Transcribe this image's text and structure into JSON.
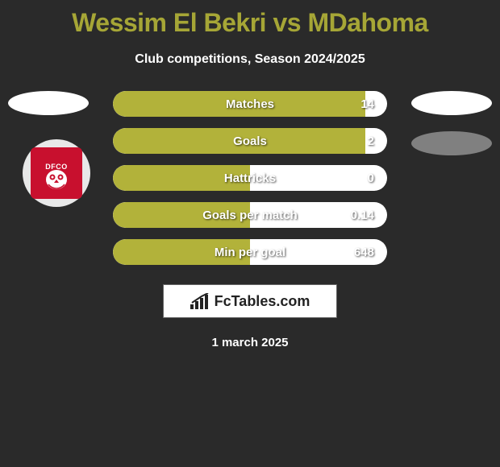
{
  "title": "Wessim El Bekri vs MDahoma",
  "title_color": "#a6a636",
  "subtitle": "Club competitions, Season 2024/2025",
  "date": "1 march 2025",
  "badge": {
    "text": "DFCO",
    "bg": "#c8102e"
  },
  "stats": [
    {
      "label": "Matches",
      "value": "14",
      "fill_pct": 92,
      "fill_color": "#b2b23a"
    },
    {
      "label": "Goals",
      "value": "2",
      "fill_pct": 92,
      "fill_color": "#b2b23a"
    },
    {
      "label": "Hattricks",
      "value": "0",
      "fill_pct": 50,
      "fill_color": "#b2b23a"
    },
    {
      "label": "Goals per match",
      "value": "0.14",
      "fill_pct": 50,
      "fill_color": "#b2b23a"
    },
    {
      "label": "Min per goal",
      "value": "648",
      "fill_pct": 50,
      "fill_color": "#b2b23a"
    }
  ],
  "logo": {
    "text": "FcTables.com"
  },
  "markers": {
    "left1_bg": "#ffffff",
    "right1_bg": "#ffffff",
    "right2_bg": "#808080"
  }
}
